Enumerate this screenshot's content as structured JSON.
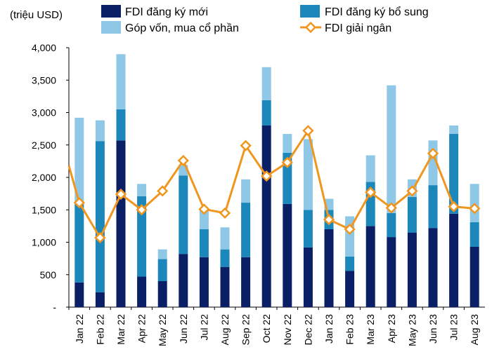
{
  "chart_data": {
    "type": "bar",
    "unit_label": "(triệu USD)",
    "categories": [
      "Jan 22",
      "Feb 22",
      "Mar 22",
      "Apr 22",
      "May 22",
      "Jun 22",
      "Jul 22",
      "Aug 22",
      "Sep 22",
      "Oct 22",
      "Nov 22",
      "Dec 22",
      "Jan 23",
      "Feb 23",
      "Mar 23",
      "Apr 23",
      "May 23",
      "Jun 23",
      "Jul 23",
      "Aug 23"
    ],
    "yticks": [
      "-",
      "500",
      "1,000",
      "1,500",
      "2,000",
      "2,500",
      "3,000",
      "3,500",
      "4,000"
    ],
    "ylim": [
      0,
      4000
    ],
    "grid": false,
    "legend_position": "top",
    "series": [
      {
        "name": "FDI đăng ký mới",
        "kind": "bar",
        "color": "#0b1f66",
        "values": [
          380,
          230,
          2570,
          470,
          400,
          820,
          770,
          620,
          770,
          2800,
          1590,
          920,
          1200,
          560,
          1250,
          1080,
          1150,
          1220,
          1440,
          930
        ]
      },
      {
        "name": "FDI đăng ký bổ sung",
        "kind": "bar",
        "color": "#1c87bb",
        "values": [
          1230,
          2330,
          480,
          1240,
          340,
          1210,
          430,
          270,
          840,
          390,
          790,
          580,
          300,
          220,
          680,
          370,
          550,
          660,
          1230,
          380
        ]
      },
      {
        "name": "Góp vốn, mua cổ phần",
        "kind": "bar",
        "color": "#8fc8e6",
        "values": [
          1310,
          320,
          850,
          190,
          150,
          160,
          320,
          340,
          360,
          510,
          290,
          1090,
          170,
          620,
          410,
          1970,
          270,
          690,
          130,
          590
        ]
      },
      {
        "name": "FDI giải ngân",
        "kind": "line",
        "color": "#f0961e",
        "values": [
          1610,
          1070,
          1740,
          1500,
          1790,
          2260,
          1510,
          1450,
          2490,
          2020,
          2230,
          2720,
          1350,
          1200,
          1770,
          1530,
          1790,
          2370,
          1550,
          1520
        ]
      }
    ],
    "line_start_value": 2180
  }
}
